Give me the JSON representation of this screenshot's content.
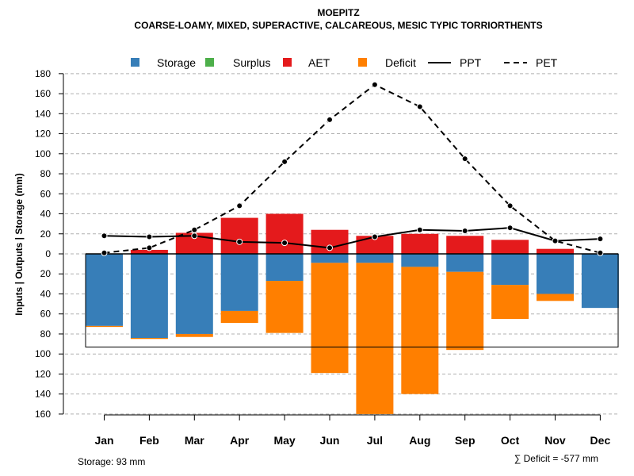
{
  "colors": {
    "storage": "#377eb8",
    "surplus": "#4daf4a",
    "aet": "#e41a1c",
    "deficit": "#ff7f00",
    "line": "#000000",
    "grid": "#b0b0b0"
  },
  "chart_data": {
    "type": "bar",
    "title": "MOEPITZ",
    "subtitle": "COARSE-LOAMY, MIXED, SUPERACTIVE, CALCAREOUS, MESIC TYPIC TORRIORTHENTS",
    "ylabel_parts": [
      "Inputs",
      "Outputs",
      "Storage",
      "(mm)"
    ],
    "ylim": [
      -160,
      180
    ],
    "yticks": [
      180,
      160,
      140,
      120,
      100,
      80,
      60,
      40,
      20,
      0,
      -20,
      -40,
      -60,
      -80,
      -100,
      -120,
      -140,
      -160
    ],
    "ytick_labels": [
      "180",
      "160",
      "140",
      "120",
      "100",
      "80",
      "60",
      "40",
      "20",
      "0",
      "20",
      "40",
      "60",
      "80",
      "100",
      "120",
      "140",
      "160"
    ],
    "categories": [
      "Jan",
      "Feb",
      "Mar",
      "Apr",
      "May",
      "Jun",
      "Jul",
      "Aug",
      "Sep",
      "Oct",
      "Nov",
      "Dec"
    ],
    "legend": [
      {
        "label": "Storage",
        "key": "storage",
        "kind": "box"
      },
      {
        "label": "Surplus",
        "key": "surplus",
        "kind": "box"
      },
      {
        "label": "AET",
        "key": "aet",
        "kind": "box"
      },
      {
        "label": "Deficit",
        "key": "deficit",
        "kind": "box"
      },
      {
        "label": "PPT",
        "key": "ppt",
        "kind": "solid"
      },
      {
        "label": "PET",
        "key": "pet",
        "kind": "dashed"
      }
    ],
    "series": [
      {
        "name": "AET",
        "key": "aet",
        "values": [
          0,
          4,
          21,
          36,
          40,
          24,
          18,
          20,
          18,
          14,
          5,
          0
        ]
      },
      {
        "name": "Storage",
        "key": "storage",
        "values": [
          -72,
          -84,
          -80,
          -57,
          -27,
          -9,
          -9,
          -13,
          -18,
          -31,
          -40,
          -54
        ]
      },
      {
        "name": "Deficit",
        "key": "deficit",
        "values": [
          -1,
          -1,
          -3,
          -12,
          -52,
          -110,
          -151,
          -127,
          -78,
          -34,
          -7,
          0
        ]
      },
      {
        "name": "Surplus",
        "key": "surplus",
        "values": [
          0,
          0,
          0,
          0,
          0,
          0,
          0,
          0,
          0,
          0,
          0,
          0
        ]
      },
      {
        "name": "PPT",
        "key": "ppt",
        "values": [
          18,
          17,
          18,
          12,
          11,
          6,
          17,
          24,
          23,
          26,
          13,
          15
        ]
      },
      {
        "name": "PET",
        "key": "pet",
        "values": [
          1,
          6,
          24,
          48,
          92,
          134,
          169,
          147,
          95,
          48,
          13,
          1
        ]
      }
    ],
    "storage_capacity": 93,
    "footnotes": {
      "storage": "Storage: 93 mm",
      "deficit": "∑ Deficit = -577 mm"
    }
  }
}
